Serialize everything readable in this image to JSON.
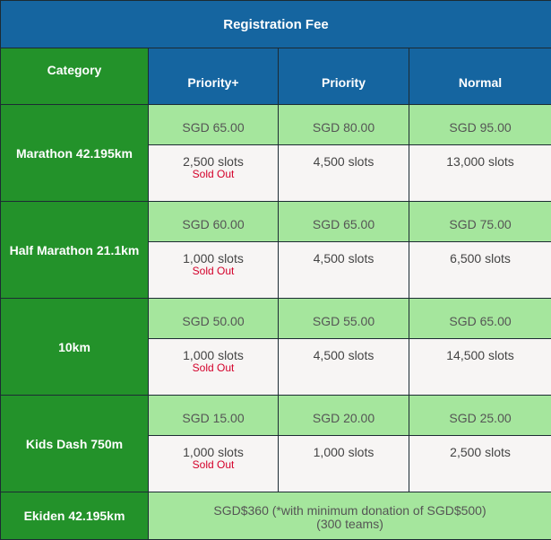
{
  "title": "Registration Fee",
  "headers": {
    "category": "Category",
    "tiers": [
      "Priority+",
      "Priority",
      "Normal"
    ]
  },
  "rows": [
    {
      "category": "Marathon 42.195km",
      "prices": [
        "SGD 65.00",
        "SGD 80.00",
        "SGD 95.00"
      ],
      "slots": [
        "2,500 slots",
        "4,500 slots",
        "13,000 slots"
      ],
      "status": "Sold Out"
    },
    {
      "category": "Half Marathon 21.1km",
      "prices": [
        "SGD 60.00",
        "SGD 65.00",
        "SGD 75.00"
      ],
      "slots": [
        "1,000 slots",
        "4,500 slots",
        "6,500 slots"
      ],
      "status": "Sold Out"
    },
    {
      "category": "10km",
      "prices": [
        "SGD 50.00",
        "SGD 55.00",
        "SGD 65.00"
      ],
      "slots": [
        "1,000 slots",
        "4,500 slots",
        "14,500 slots"
      ],
      "status": "Sold Out"
    },
    {
      "category": "Kids Dash 750m",
      "prices": [
        "SGD 15.00",
        "SGD 20.00",
        "SGD 25.00"
      ],
      "slots": [
        "1,000 slots",
        "1,000 slots",
        "2,500 slots"
      ],
      "status": "Sold Out"
    }
  ],
  "ekiden": {
    "category": "Ekiden 42.195km",
    "fee": "SGD$360 (*with minimum donation of SGD$500)",
    "teams": "(300 teams)"
  },
  "colors": {
    "header": "#1565a0",
    "category": "#23922a",
    "price": "#a5e69d",
    "slots": "#f7f5f4",
    "sold_out": "#d4002a"
  }
}
